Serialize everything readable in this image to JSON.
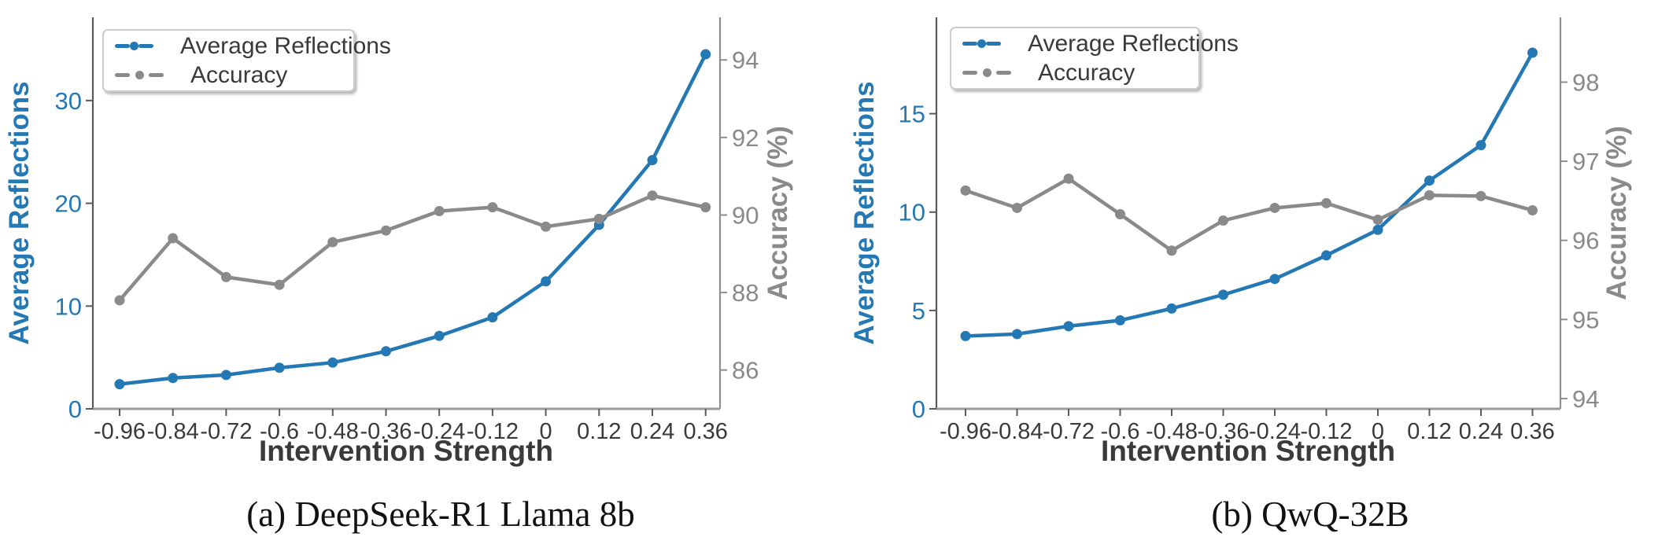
{
  "figure": {
    "background": "#ffffff"
  },
  "colors": {
    "reflections": "#2478b4",
    "accuracy": "#8a8a8a",
    "x_tick_text": "#3a3a3a",
    "left_spine": "#5a5a5a",
    "right_spine": "#8f8f8f",
    "bottom_spine": "#9a9a9a"
  },
  "legend": {
    "items": [
      {
        "label": "Average Reflections",
        "color_key": "reflections"
      },
      {
        "label": "Accuracy",
        "color_key": "accuracy"
      }
    ],
    "position": "upper left"
  },
  "chart_data": [
    {
      "type": "line",
      "caption": "(a) DeepSeek-R1 Llama 8b",
      "xlabel": "Intervention Strength",
      "ylabel_left": "Average Reflections",
      "ylabel_right": "Accuracy (%)",
      "categories": [
        "-0.96",
        "-0.84",
        "-0.72",
        "-0.6",
        "-0.48",
        "-0.36",
        "-0.24",
        "-0.12",
        "0",
        "0.12",
        "0.24",
        "0.36"
      ],
      "series": [
        {
          "name": "Average Reflections",
          "axis": "left",
          "color_key": "reflections",
          "values": [
            2.4,
            3.0,
            3.3,
            4.0,
            4.5,
            5.6,
            7.1,
            8.9,
            12.4,
            17.9,
            24.2,
            34.5
          ]
        },
        {
          "name": "Accuracy",
          "axis": "right",
          "color_key": "accuracy",
          "values": [
            87.8,
            89.4,
            88.4,
            88.2,
            89.3,
            89.6,
            90.1,
            90.2,
            89.7,
            89.9,
            90.5,
            90.2
          ]
        }
      ],
      "yticks_left": [
        0,
        10,
        20,
        30
      ],
      "ylim_left": [
        0,
        38.1
      ],
      "yticks_right": [
        86,
        88,
        90,
        92,
        94
      ],
      "ylim_right": [
        85.0,
        95.1
      ],
      "grid": false,
      "legend_position": "upper left"
    },
    {
      "type": "line",
      "caption": "(b) QwQ-32B",
      "xlabel": "Intervention Strength",
      "ylabel_left": "Average Reflections",
      "ylabel_right": "Accuracy (%)",
      "categories": [
        "-0.96",
        "-0.84",
        "-0.72",
        "-0.6",
        "-0.48",
        "-0.36",
        "-0.24",
        "-0.12",
        "0",
        "0.12",
        "0.24",
        "0.36"
      ],
      "series": [
        {
          "name": "Average Reflections",
          "axis": "left",
          "color_key": "reflections",
          "values": [
            3.7,
            3.8,
            4.2,
            4.5,
            5.1,
            5.8,
            6.6,
            7.8,
            9.1,
            11.6,
            13.4,
            18.1
          ]
        },
        {
          "name": "Accuracy",
          "axis": "right",
          "color_key": "accuracy",
          "values": [
            96.63,
            96.41,
            96.78,
            96.33,
            95.87,
            96.25,
            96.41,
            96.47,
            96.26,
            96.57,
            96.56,
            96.38
          ]
        }
      ],
      "yticks_left": [
        0,
        5,
        10,
        15
      ],
      "ylim_left": [
        0,
        19.9
      ],
      "yticks_right": [
        94,
        95,
        96,
        97,
        98
      ],
      "ylim_right": [
        93.87,
        98.82
      ],
      "grid": false,
      "legend_position": "upper left"
    }
  ]
}
